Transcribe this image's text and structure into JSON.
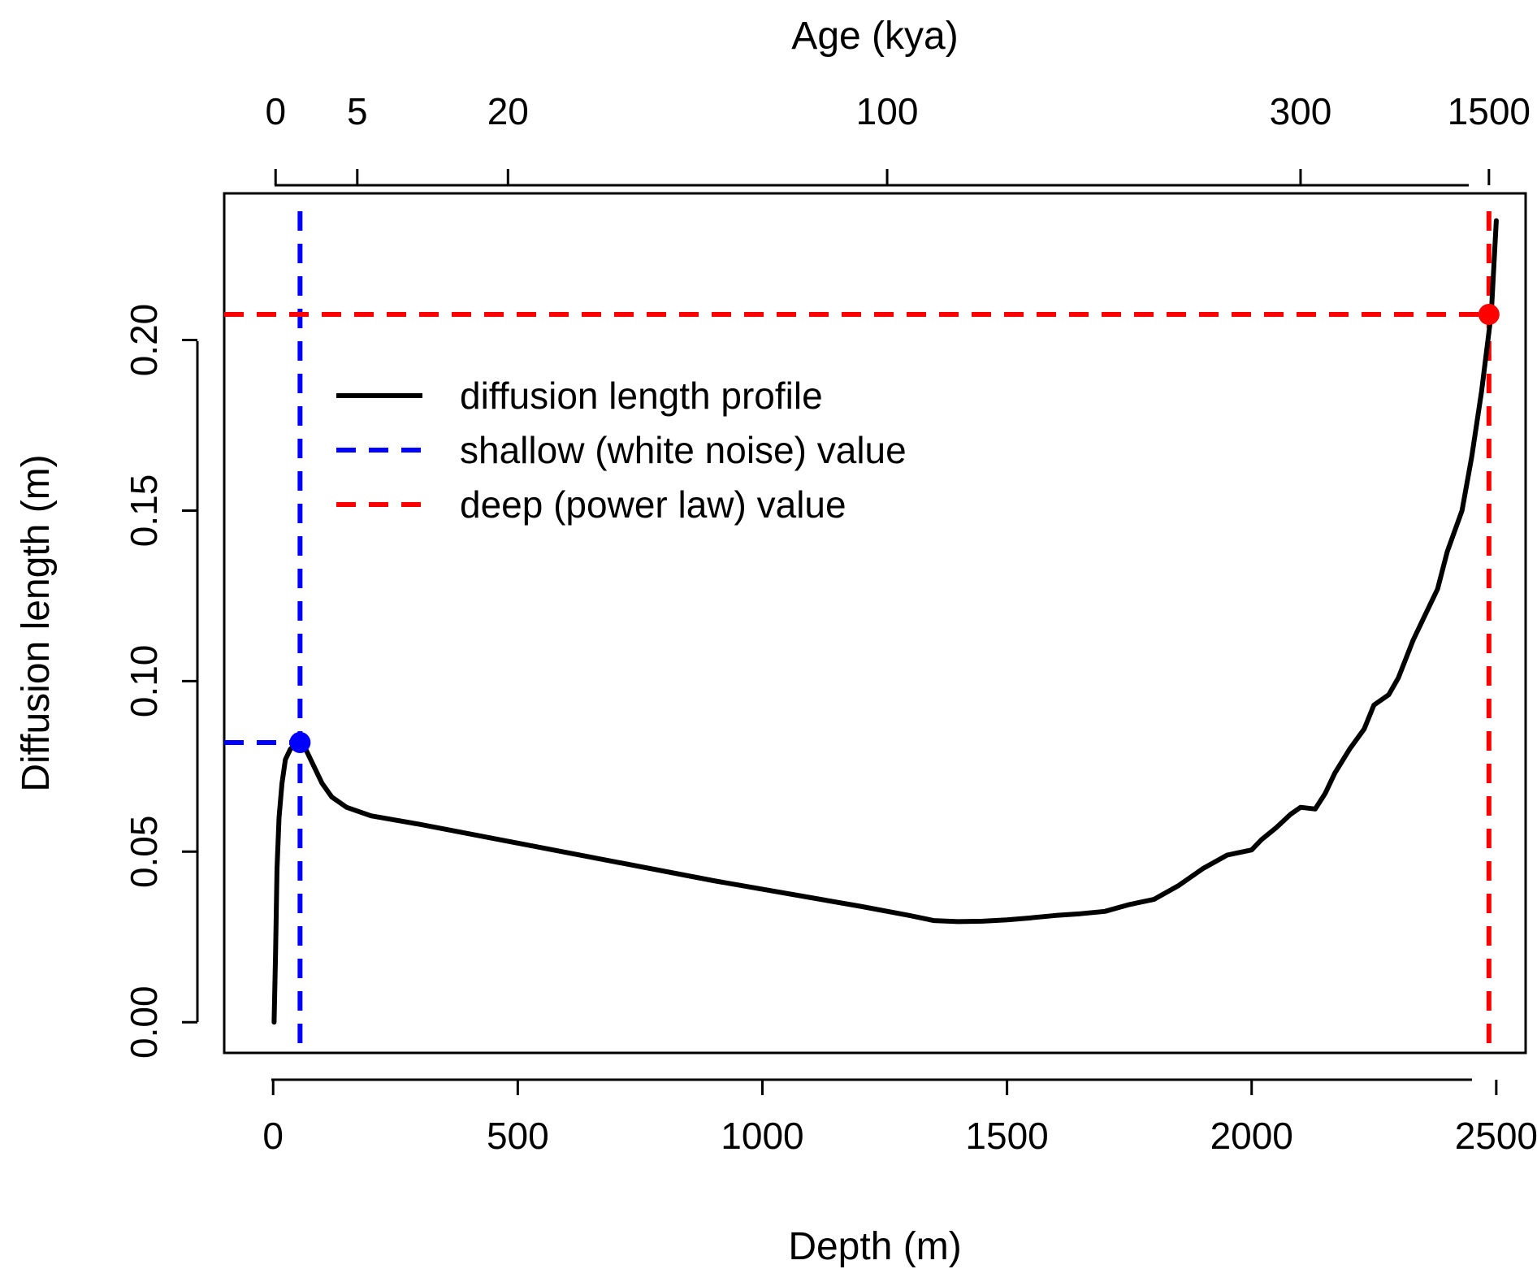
{
  "colors": {
    "profile": "#000000",
    "shallow": "#0000ff",
    "deep": "#ff0000",
    "frame": "#000000"
  },
  "chart_data": {
    "type": "line",
    "xlabel": "Depth (m)",
    "ylabel": "Diffusion length (m)",
    "top_axis_label": "Age (kya)",
    "xlim": [
      -100,
      2560
    ],
    "ylim": [
      -0.009,
      0.243
    ],
    "x_ticks": [
      "0",
      "500",
      "1000",
      "1500",
      "2000",
      "2500"
    ],
    "x_tick_values": [
      0,
      500,
      1000,
      1500,
      2000,
      2500
    ],
    "y_ticks": [
      "0.00",
      "0.05",
      "0.10",
      "0.15",
      "0.20"
    ],
    "y_tick_values": [
      0,
      0.05,
      0.1,
      0.15,
      0.2
    ],
    "top_ticks": [
      {
        "label": "0",
        "depth": 5
      },
      {
        "label": "5",
        "depth": 172
      },
      {
        "label": "20",
        "depth": 480
      },
      {
        "label": "100",
        "depth": 1255
      },
      {
        "label": "300",
        "depth": 2100
      },
      {
        "label": "1500",
        "depth": 2485
      }
    ],
    "legend": {
      "position": "top-left",
      "entries": [
        {
          "label": "diffusion length profile",
          "style": "solid",
          "color": "#000000"
        },
        {
          "label": "shallow (white noise) value",
          "style": "dashed",
          "color": "#0000ff"
        },
        {
          "label": "deep (power law) value",
          "style": "dashed",
          "color": "#ff0000"
        }
      ]
    },
    "series": [
      {
        "name": "diffusion length profile",
        "color": "#000000",
        "style": "solid",
        "x": [
          2,
          5,
          8,
          12,
          18,
          25,
          35,
          45,
          55,
          65,
          80,
          100,
          120,
          150,
          200,
          300,
          500,
          700,
          900,
          1100,
          1200,
          1300,
          1350,
          1400,
          1450,
          1500,
          1550,
          1600,
          1650,
          1700,
          1750,
          1800,
          1850,
          1900,
          1950,
          2000,
          2020,
          2050,
          2080,
          2100,
          2130,
          2150,
          2170,
          2200,
          2230,
          2250,
          2280,
          2300,
          2330,
          2350,
          2380,
          2400,
          2430,
          2450,
          2470,
          2490,
          2500
        ],
        "y": [
          0.0,
          0.02,
          0.045,
          0.06,
          0.07,
          0.077,
          0.08,
          0.0815,
          0.082,
          0.0805,
          0.076,
          0.07,
          0.066,
          0.063,
          0.0605,
          0.058,
          0.0525,
          0.047,
          0.0415,
          0.0365,
          0.034,
          0.0313,
          0.0298,
          0.0295,
          0.0296,
          0.03,
          0.0306,
          0.0313,
          0.0318,
          0.0325,
          0.0345,
          0.036,
          0.04,
          0.045,
          0.049,
          0.0505,
          0.0535,
          0.057,
          0.061,
          0.063,
          0.0625,
          0.067,
          0.073,
          0.08,
          0.086,
          0.093,
          0.096,
          0.101,
          0.112,
          0.118,
          0.127,
          0.138,
          0.15,
          0.166,
          0.185,
          0.208,
          0.235
        ]
      }
    ],
    "shallow_value": {
      "depth": 55,
      "diffusion_length": 0.082,
      "color": "#0000ff"
    },
    "deep_value": {
      "depth": 2485,
      "diffusion_length": 0.2075,
      "color": "#ff0000"
    }
  }
}
